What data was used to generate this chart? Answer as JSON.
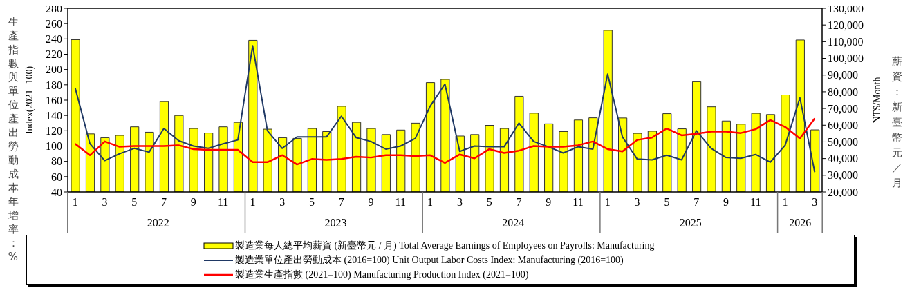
{
  "chart_data": {
    "type": "bar",
    "x": [
      "2022-01",
      "2022-02",
      "2022-03",
      "2022-04",
      "2022-05",
      "2022-06",
      "2022-07",
      "2022-08",
      "2022-09",
      "2022-10",
      "2022-11",
      "2022-12",
      "2023-01",
      "2023-02",
      "2023-03",
      "2023-04",
      "2023-05",
      "2023-06",
      "2023-07",
      "2023-08",
      "2023-09",
      "2023-10",
      "2023-11",
      "2023-12",
      "2024-01",
      "2024-02",
      "2024-03",
      "2024-04",
      "2024-05",
      "2024-06",
      "2024-07",
      "2024-08",
      "2024-09",
      "2024-10",
      "2024-11",
      "2024-12",
      "2025-01",
      "2025-02",
      "2025-03",
      "2025-04",
      "2025-05",
      "2025-06",
      "2025-07",
      "2025-08",
      "2025-09",
      "2025-10",
      "2025-11",
      "2025-12",
      "2026-01",
      "2026-02",
      "2026-03"
    ],
    "series": [
      {
        "name": "製造業每人總平均薪資 (新臺幣元 / 月)  Total Average Earnings of Employees on Payrolls: Manufacturing",
        "axis": "y2",
        "color": "#ffff00",
        "values": [
          111200,
          54800,
          52500,
          53900,
          59000,
          55800,
          74100,
          65800,
          58000,
          55300,
          59000,
          61700,
          110800,
          57600,
          52500,
          52100,
          58000,
          56200,
          71300,
          61700,
          58000,
          54400,
          57100,
          61200,
          85500,
          87400,
          53500,
          54400,
          59900,
          58000,
          77300,
          67200,
          60800,
          56200,
          63100,
          64400,
          116800,
          64300,
          55100,
          56400,
          66900,
          57800,
          86000,
          71000,
          62500,
          60600,
          67100,
          66400,
          78100,
          111000,
          57200
        ]
      },
      {
        "name": "製造業單位產出勞動成本 (2016=100) Unit Output Labor Costs Index: Manufacturing (2016=100)",
        "type": "line",
        "axis": "y",
        "color": "#1f3864",
        "values": [
          176,
          103,
          81,
          90,
          97,
          92,
          123,
          107,
          100,
          97,
          103,
          108,
          231,
          120,
          97,
          112,
          112,
          112,
          139,
          111,
          106,
          96,
          100,
          110,
          152,
          181,
          93,
          100,
          99,
          99,
          130,
          106,
          99,
          91,
          99,
          96,
          194,
          112,
          83,
          82,
          88,
          82,
          120,
          97,
          85,
          84,
          89,
          79,
          101,
          163,
          66
        ]
      },
      {
        "name": "製造業生產指數 (2021=100) Manufacturing Production Index (2021=100)",
        "type": "line",
        "axis": "y",
        "color": "#ff0000",
        "values": [
          103,
          88,
          106,
          99,
          100,
          100,
          100,
          101,
          96,
          95,
          95,
          95,
          79,
          79,
          88,
          76,
          83,
          82,
          83,
          86,
          85,
          88,
          88,
          87,
          88,
          78,
          89,
          84,
          96,
          91,
          94,
          100,
          99,
          99,
          101,
          106,
          96,
          93,
          108,
          111,
          123,
          114,
          116,
          119,
          119,
          117,
          122,
          134,
          125,
          110,
          136
        ]
      }
    ],
    "ylim": [
      40,
      280
    ],
    "yticks": [
      40,
      60,
      80,
      100,
      120,
      140,
      160,
      180,
      200,
      220,
      240,
      260,
      280
    ],
    "y2lim": [
      20000,
      130000
    ],
    "y2ticks": [
      {
        "value": 20000,
        "label": "20,000"
      },
      {
        "value": 30000,
        "label": "30,000"
      },
      {
        "value": 40000,
        "label": "40,000"
      },
      {
        "value": 50000,
        "label": "50,000"
      },
      {
        "value": 60000,
        "label": "60,000"
      },
      {
        "value": 70000,
        "label": "70,000"
      },
      {
        "value": 80000,
        "label": "80,000"
      },
      {
        "value": 90000,
        "label": "90,000"
      },
      {
        "value": 100000,
        "label": "100,000"
      },
      {
        "value": 110000,
        "label": "110,000"
      },
      {
        "value": 120000,
        "label": "120,000"
      },
      {
        "value": 130000,
        "label": "130,000"
      }
    ],
    "xticks": [
      {
        "value": "2022-01",
        "label": "1"
      },
      {
        "value": "2022-03",
        "label": "3"
      },
      {
        "value": "2022-05",
        "label": "5"
      },
      {
        "value": "2022-07",
        "label": "7"
      },
      {
        "value": "2022-09",
        "label": "9"
      },
      {
        "value": "2022-11",
        "label": "11"
      },
      {
        "value": "2023-01",
        "label": "1"
      },
      {
        "value": "2023-03",
        "label": "3"
      },
      {
        "value": "2023-05",
        "label": "5"
      },
      {
        "value": "2023-07",
        "label": "7"
      },
      {
        "value": "2023-09",
        "label": "9"
      },
      {
        "value": "2023-11",
        "label": "11"
      },
      {
        "value": "2024-01",
        "label": "1"
      },
      {
        "value": "2024-03",
        "label": "3"
      },
      {
        "value": "2024-05",
        "label": "5"
      },
      {
        "value": "2024-07",
        "label": "7"
      },
      {
        "value": "2024-09",
        "label": "9"
      },
      {
        "value": "2024-11",
        "label": "11"
      },
      {
        "value": "2025-01",
        "label": "1"
      },
      {
        "value": "2025-03",
        "label": "3"
      },
      {
        "value": "2025-05",
        "label": "5"
      },
      {
        "value": "2025-07",
        "label": "7"
      },
      {
        "value": "2025-09",
        "label": "9"
      },
      {
        "value": "2025-11",
        "label": "11"
      },
      {
        "value": "2026-01",
        "label": "1"
      },
      {
        "value": "2026-03",
        "label": "3"
      }
    ],
    "ylabel": "Index(2021=100)",
    "y2label": "NT$/Month",
    "annotations": [
      "生產指數與單位產出勞動成本年增率：%",
      "薪資：新臺幣元／月",
      "2022",
      "2023",
      "2024",
      "2025",
      "2026"
    ],
    "xlim": [
      "2022-01",
      "2026-03"
    ],
    "legend": "bottom"
  }
}
